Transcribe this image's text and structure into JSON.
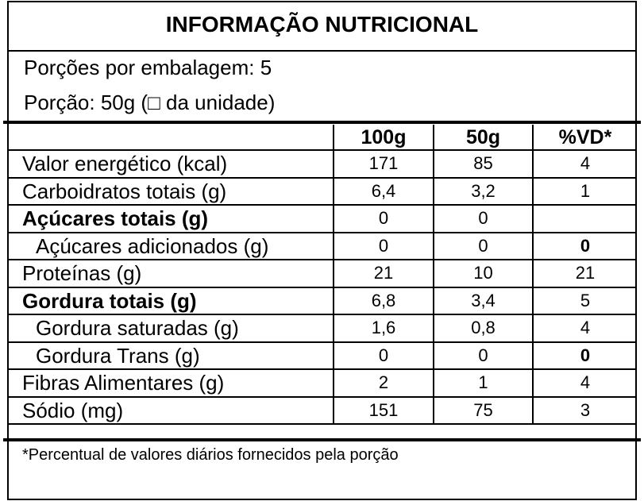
{
  "header": {
    "title": "INFORMAÇÃO NUTRICIONAL",
    "servings_per_package": "Porções por embalagem: 5",
    "serving_size": "Porção: 50g (□ da unidade)"
  },
  "table": {
    "columns": [
      "100g",
      "50g",
      "%VD*"
    ],
    "rows": [
      [
        "Valor energético (kcal)",
        "171",
        "85",
        "4"
      ],
      [
        "Carboidratos totais (g)",
        "6,4",
        "3,2",
        "1"
      ],
      [
        "Açúcares totais (g)",
        "0",
        "0",
        null
      ],
      [
        "Açúcares adicionados (g)",
        "0",
        "0",
        "0"
      ],
      [
        "Proteínas (g)",
        "21",
        "10",
        "21"
      ],
      [
        "Gordura totais (g)",
        "6,8",
        "3,4",
        "5"
      ],
      [
        "Gordura saturadas (g)",
        "1,6",
        "0,8",
        "4"
      ],
      [
        "Gordura Trans (g)",
        "0",
        "0",
        "0"
      ],
      [
        "Fibras Alimentares (g)",
        "2",
        "1",
        "4"
      ],
      [
        "Sódio (mg)",
        "151",
        "75",
        "3"
      ]
    ]
  },
  "footnote": "*Percentual de valores diários fornecidos pela porção"
}
